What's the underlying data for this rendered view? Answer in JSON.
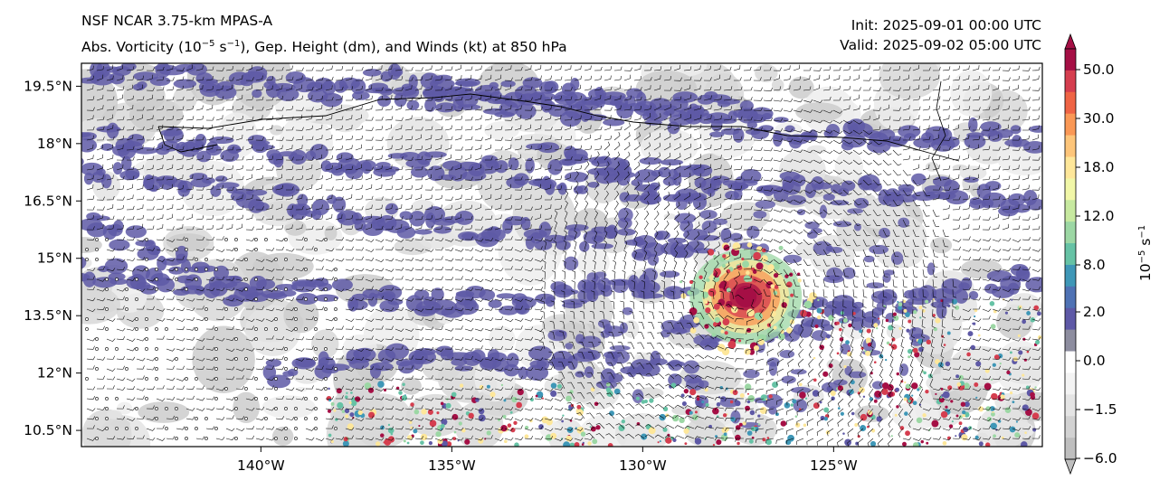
{
  "header": {
    "model": "NSF NCAR 3.75-km MPAS-A",
    "field_prefix": "Abs. Vorticity (10",
    "field_exp1": "−5",
    "field_mid": " s",
    "field_exp2": "−1",
    "field_suffix": "), Gep. Height (dm), and Winds (kt) at 850 hPa",
    "init": "Init: 2025-09-01 00:00 UTC",
    "valid": "Valid: 2025-09-02 05:00 UTC"
  },
  "axes": {
    "lat_labels": [
      "19.5°N",
      "18°N",
      "16.5°N",
      "15°N",
      "13.5°N",
      "12°N",
      "10.5°N"
    ],
    "lon_labels": [
      "140°W",
      "135°W",
      "130°W",
      "125°W"
    ]
  },
  "colorbar": {
    "tick_labels": [
      "50.0",
      "30.0",
      "18.0",
      "12.0",
      "8.0",
      "2.0",
      "0.0",
      "−1.5",
      "−6.0"
    ],
    "unit_base": "10",
    "unit_exp1": "−5",
    "unit_mid": " s",
    "unit_exp2": "−1",
    "colors": [
      "#a50f45",
      "#d53e4f",
      "#ef6445",
      "#fa9856",
      "#fdc57a",
      "#fee79a",
      "#f1f7a8",
      "#c7e9a0",
      "#9cd7a4",
      "#66c2a5",
      "#3f97b7",
      "#4f72b4",
      "#5e59a6",
      "#8d8d9f",
      "#ffffff",
      "#f3f3f3",
      "#e4e4e4",
      "#d2d2d2",
      "#bebebe"
    ]
  },
  "cyclone": {
    "lon": -127.3,
    "lat": 14.0
  }
}
